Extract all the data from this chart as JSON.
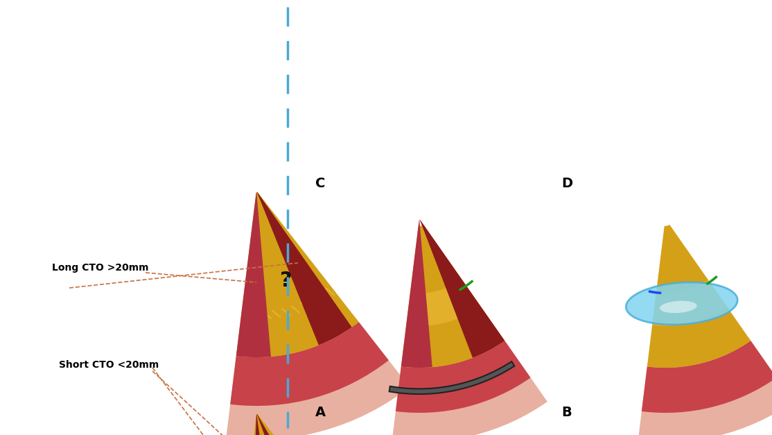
{
  "bg_color": "#ffffff",
  "dashed_line_color": "#4aa8d8",
  "label_short": "Short CTO <20mm",
  "label_long": "Long CTO >20mm",
  "labels_abcd": [
    "A",
    "B",
    "C",
    "D"
  ],
  "artery_outer_color": "#c8424a",
  "artery_mid_color": "#e8b0a0",
  "artery_inner_color": "#b03040",
  "plaque_color": "#d4a017",
  "plaque_dark": "#c8850a",
  "plaque_light": "#f0c040",
  "block_color": "#8b1a1a",
  "green_wire": "#1a9e1a",
  "blue_wire": "#1a4aee",
  "gray_wire": "#606060",
  "black_wire": "#111111",
  "balloon_color": "#80d4f0",
  "balloon_outline": "#4ab0d8",
  "annotation_line_color": "#c87040",
  "question_mark_color": "#111111"
}
